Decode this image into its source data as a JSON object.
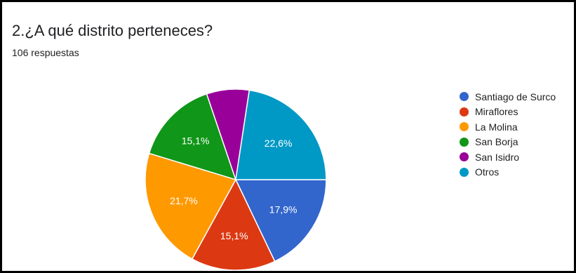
{
  "title": "2.¿A qué distrito perteneces?",
  "subtitle": "106 respuestas",
  "chart_data": {
    "type": "pie",
    "title": "2.¿A qué distrito perteneces?",
    "slices": [
      {
        "label": "Santiago de Surco",
        "value": 17.9,
        "data_label": "17,9%",
        "color": "#3366CC"
      },
      {
        "label": "Miraflores",
        "value": 15.1,
        "data_label": "15,1%",
        "color": "#DC3912"
      },
      {
        "label": "La Molina",
        "value": 21.7,
        "data_label": "21,7%",
        "color": "#FF9900"
      },
      {
        "label": "San Borja",
        "value": 15.1,
        "data_label": "15,1%",
        "color": "#109618"
      },
      {
        "label": "San Isidro",
        "value": 7.6,
        "data_label": "",
        "color": "#990099"
      },
      {
        "label": "Otros",
        "value": 22.6,
        "data_label": "22,6%",
        "color": "#0099C6"
      }
    ],
    "start_angle_deg": 90,
    "direction": "clockwise",
    "legend_position": "right"
  }
}
